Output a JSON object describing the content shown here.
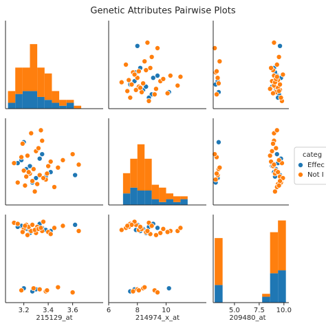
{
  "chart_data": {
    "type": "pairplot",
    "title": "Genetic Attributes Pairwise Plots",
    "variables": [
      "215129_at",
      "214974_x_at",
      "209480_at"
    ],
    "axes": [
      {
        "lim": [
          3.05,
          3.85
        ],
        "ticks": [
          3.2,
          3.4,
          3.6
        ]
      },
      {
        "lim": [
          6,
          12.8
        ],
        "ticks": [
          6,
          8,
          10
        ]
      },
      {
        "lim": [
          2.85,
          10.5
        ],
        "ticks": [
          {
            "value": 5,
            "label": "5.0"
          },
          7.5,
          {
            "value": 10,
            "label": "10.0"
          }
        ]
      }
    ],
    "scatter_ylims": [
      [
        3.05,
        3.85
      ],
      [
        6,
        11.8
      ],
      [
        2.0,
        10.6
      ]
    ],
    "hist_ylim": [
      0,
      30
    ],
    "legend_title": "categ",
    "legend": "right",
    "series": [
      {
        "name": "Effec",
        "color": "#1f77b4",
        "values": [
          [
            3.22,
            3.3,
            3.18,
            3.42,
            3.27,
            3.35,
            3.25,
            3.62,
            3.2,
            3.38,
            3.15,
            3.33
          ],
          [
            8.4,
            7.8,
            9.0,
            8.2,
            7.5,
            9.4,
            8.6,
            8.0,
            10.2,
            7.9,
            8.8,
            9.1
          ],
          [
            9.2,
            3.3,
            9.5,
            9.0,
            3.1,
            9.3,
            8.8,
            9.6,
            3.4,
            9.1,
            9.4,
            9.7
          ]
        ]
      },
      {
        "name": "Not I",
        "color": "#ff7f0e",
        "values": [
          [
            3.25,
            3.31,
            3.18,
            3.4,
            3.22,
            3.35,
            3.28,
            3.45,
            3.12,
            3.3,
            3.38,
            3.2,
            3.52,
            3.26,
            3.33,
            3.15,
            3.42,
            3.29,
            3.6,
            3.24,
            3.36,
            3.19,
            3.48,
            3.32,
            3.27,
            3.65,
            3.23,
            3.39,
            3.34,
            3.21
          ],
          [
            8.1,
            7.4,
            9.2,
            8.6,
            7.9,
            10.3,
            8.4,
            7.2,
            8.8,
            9.6,
            7.7,
            8.3,
            9.0,
            10.8,
            8.0,
            7.5,
            8.9,
            6.9,
            9.4,
            8.2,
            7.8,
            10.1,
            8.5,
            9.8,
            7.6,
            8.7,
            9.3,
            8.1,
            11.0,
            7.3
          ],
          [
            9.1,
            9.4,
            3.2,
            8.9,
            9.6,
            9.0,
            3.4,
            9.3,
            9.8,
            8.8,
            3.1,
            9.2,
            9.5,
            9.0,
            3.3,
            9.7,
            8.7,
            9.1,
            3.0,
            9.4,
            9.9,
            8.9,
            3.5,
            9.2,
            9.6,
            9.0,
            8.6,
            3.2,
            9.3,
            9.5
          ]
        ]
      }
    ],
    "histograms": [
      {
        "bins": [
          3.07,
          3.13,
          3.19,
          3.25,
          3.31,
          3.37,
          3.43,
          3.49,
          3.55,
          3.61,
          3.67
        ],
        "series_counts": [
          [
            2,
            5,
            6,
            6,
            4,
            3,
            2,
            1,
            2,
            0
          ],
          [
            4,
            9,
            8,
            16,
            10,
            9,
            4,
            2,
            1,
            1
          ]
        ]
      },
      {
        "bins": [
          7.0,
          7.5,
          8.0,
          8.5,
          9.0,
          9.5,
          10.0,
          10.5,
          11.0,
          11.5
        ],
        "series_counts": [
          [
            4,
            6,
            5,
            5,
            2,
            1,
            2,
            1,
            2
          ],
          [
            7,
            10,
            16,
            11,
            5,
            5,
            2,
            2,
            1
          ]
        ]
      },
      {
        "bins": [
          3.0,
          3.8,
          4.6,
          5.4,
          6.2,
          7.0,
          7.8,
          8.6,
          9.4,
          10.2
        ],
        "series_counts": [
          [
            6,
            0,
            0,
            0,
            0,
            0,
            2,
            10,
            11
          ],
          [
            16,
            0,
            0,
            0,
            0,
            0,
            1,
            14,
            17
          ]
        ]
      }
    ]
  }
}
